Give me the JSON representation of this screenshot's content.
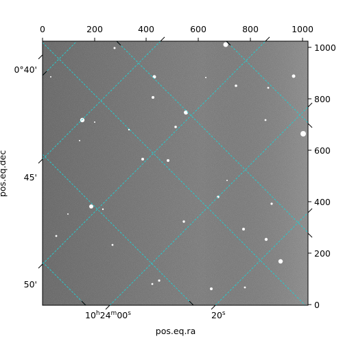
{
  "image": {
    "kind": "astronomical grayscale image with world-coordinate overlay",
    "colors": {
      "sky": "#6e6e6e",
      "grid": "#29c9cc",
      "stars": "#ffffff",
      "axes": "#000000"
    }
  },
  "axes": {
    "x_label": "pos.eq.ra",
    "y_label": "pos.eq.dec",
    "top_pixel_ticks": [
      "0",
      "200",
      "400",
      "600",
      "800",
      "1000"
    ],
    "right_pixel_ticks": [
      "0",
      "200",
      "400",
      "600",
      "800",
      "1000"
    ],
    "bottom_ra_ticks": {
      "main": "10",
      "h": "h",
      "mid": "24",
      "m": "m",
      "sec": "00",
      "s": "s",
      "second": "20",
      "second_s": "s"
    },
    "left_dec_ticks": [
      "0°40'",
      "45'",
      "50'"
    ]
  }
}
